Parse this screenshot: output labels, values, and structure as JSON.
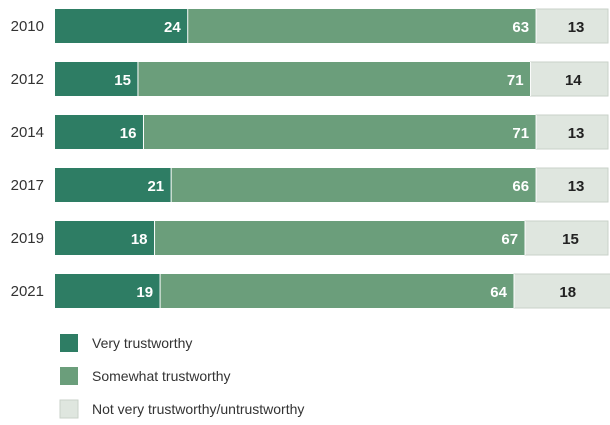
{
  "chart_data": {
    "type": "bar",
    "orientation": "horizontal",
    "stacked": true,
    "categories": [
      "2010",
      "2012",
      "2014",
      "2017",
      "2019",
      "2021"
    ],
    "series": [
      {
        "name": "Very trustworthy",
        "values": [
          24,
          15,
          16,
          21,
          18,
          19
        ],
        "color": "#2e7d64",
        "label_color": "#ffffff"
      },
      {
        "name": "Somewhat trustworthy",
        "values": [
          63,
          71,
          71,
          66,
          67,
          64
        ],
        "color": "#6b9e7b",
        "label_color": "#ffffff"
      },
      {
        "name": "Not very trustworthy/untrustworthy",
        "values": [
          13,
          14,
          13,
          13,
          15,
          18
        ],
        "color": "#dfe6df",
        "label_color": "#222222"
      }
    ],
    "xlim": [
      0,
      100
    ],
    "grid": false,
    "legend_position": "bottom-left"
  }
}
